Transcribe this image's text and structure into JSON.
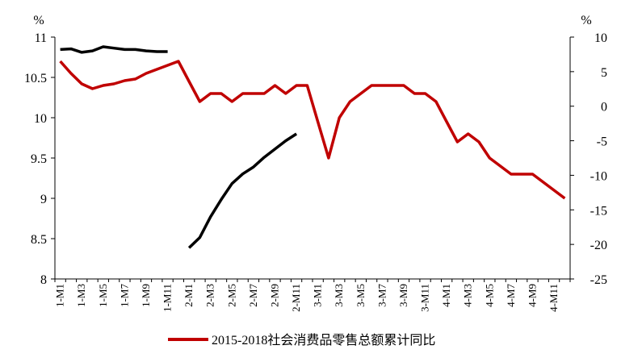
{
  "chart_data": {
    "type": "line",
    "title": "",
    "left_axis": {
      "unit": "%",
      "ylim": [
        8,
        11
      ],
      "ticks": [
        "8",
        "8.5",
        "9",
        "9.5",
        "10",
        "10.5",
        "11"
      ]
    },
    "right_axis": {
      "unit": "%",
      "ylim": [
        -25,
        10
      ],
      "ticks": [
        "-25",
        "-20",
        "-15",
        "-10",
        "-5",
        "0",
        "5",
        "10"
      ]
    },
    "x": [
      "1-M1",
      "1-M2",
      "1-M3",
      "1-M4",
      "1-M5",
      "1-M6",
      "1-M7",
      "1-M8",
      "1-M9",
      "1-M10",
      "1-M11",
      "1-M12",
      "2-M1",
      "2-M2",
      "2-M3",
      "2-M4",
      "2-M5",
      "2-M6",
      "2-M7",
      "2-M8",
      "2-M9",
      "2-M10",
      "2-M11",
      "2-M12",
      "3-M1",
      "3-M2",
      "3-M3",
      "3-M4",
      "3-M5",
      "3-M6",
      "3-M7",
      "3-M8",
      "3-M9",
      "3-M10",
      "3-M11",
      "3-M12",
      "4-M1",
      "4-M2",
      "4-M3",
      "4-M4",
      "4-M5",
      "4-M6",
      "4-M7",
      "4-M8",
      "4-M9",
      "4-M10",
      "4-M11",
      "4-M12"
    ],
    "x_tick_labels": [
      "1-M1",
      "1-M3",
      "1-M5",
      "1-M7",
      "1-M9",
      "1-M11",
      "2-M1",
      "2-M3",
      "2-M5",
      "2-M7",
      "2-M9",
      "2-M11",
      "3-M1",
      "3-M3",
      "3-M5",
      "3-M7",
      "3-M9",
      "3-M11",
      "4-M1",
      "4-M3",
      "4-M5",
      "4-M7",
      "4-M9",
      "4-M11"
    ],
    "series": [
      {
        "name": "2015-2018社会消费品零售总额累计同比",
        "color": "#c00000",
        "axis": "left",
        "values": [
          10.7,
          10.55,
          10.42,
          10.36,
          10.4,
          10.42,
          10.46,
          10.48,
          10.55,
          10.6,
          10.65,
          10.7,
          10.45,
          10.2,
          10.3,
          10.3,
          10.2,
          10.3,
          10.3,
          10.3,
          10.4,
          10.3,
          10.4,
          10.4,
          9.95,
          9.5,
          10.0,
          10.2,
          10.3,
          10.4,
          10.4,
          10.4,
          10.4,
          10.3,
          10.3,
          10.2,
          9.95,
          9.7,
          9.8,
          9.7,
          9.5,
          9.4,
          9.3,
          9.3,
          9.3,
          9.2,
          9.1,
          9.0
        ]
      },
      {
        "name": "",
        "color": "#000000",
        "axis": "right",
        "values": [
          8.2,
          8.3,
          7.8,
          8.0,
          8.6,
          8.4,
          8.2,
          8.2,
          8.0,
          7.9,
          7.9,
          null,
          -20.5,
          -19.0,
          -16.0,
          -13.5,
          -11.2,
          -9.8,
          -8.8,
          -7.4,
          -6.2,
          -5.0,
          -4.0,
          null,
          null,
          null,
          null,
          null,
          null,
          null,
          null,
          null,
          null,
          null,
          null,
          null,
          null,
          null,
          null,
          null,
          null,
          null,
          null,
          null,
          null,
          null,
          null,
          null
        ]
      }
    ],
    "legend": {
      "position": "bottom"
    }
  }
}
